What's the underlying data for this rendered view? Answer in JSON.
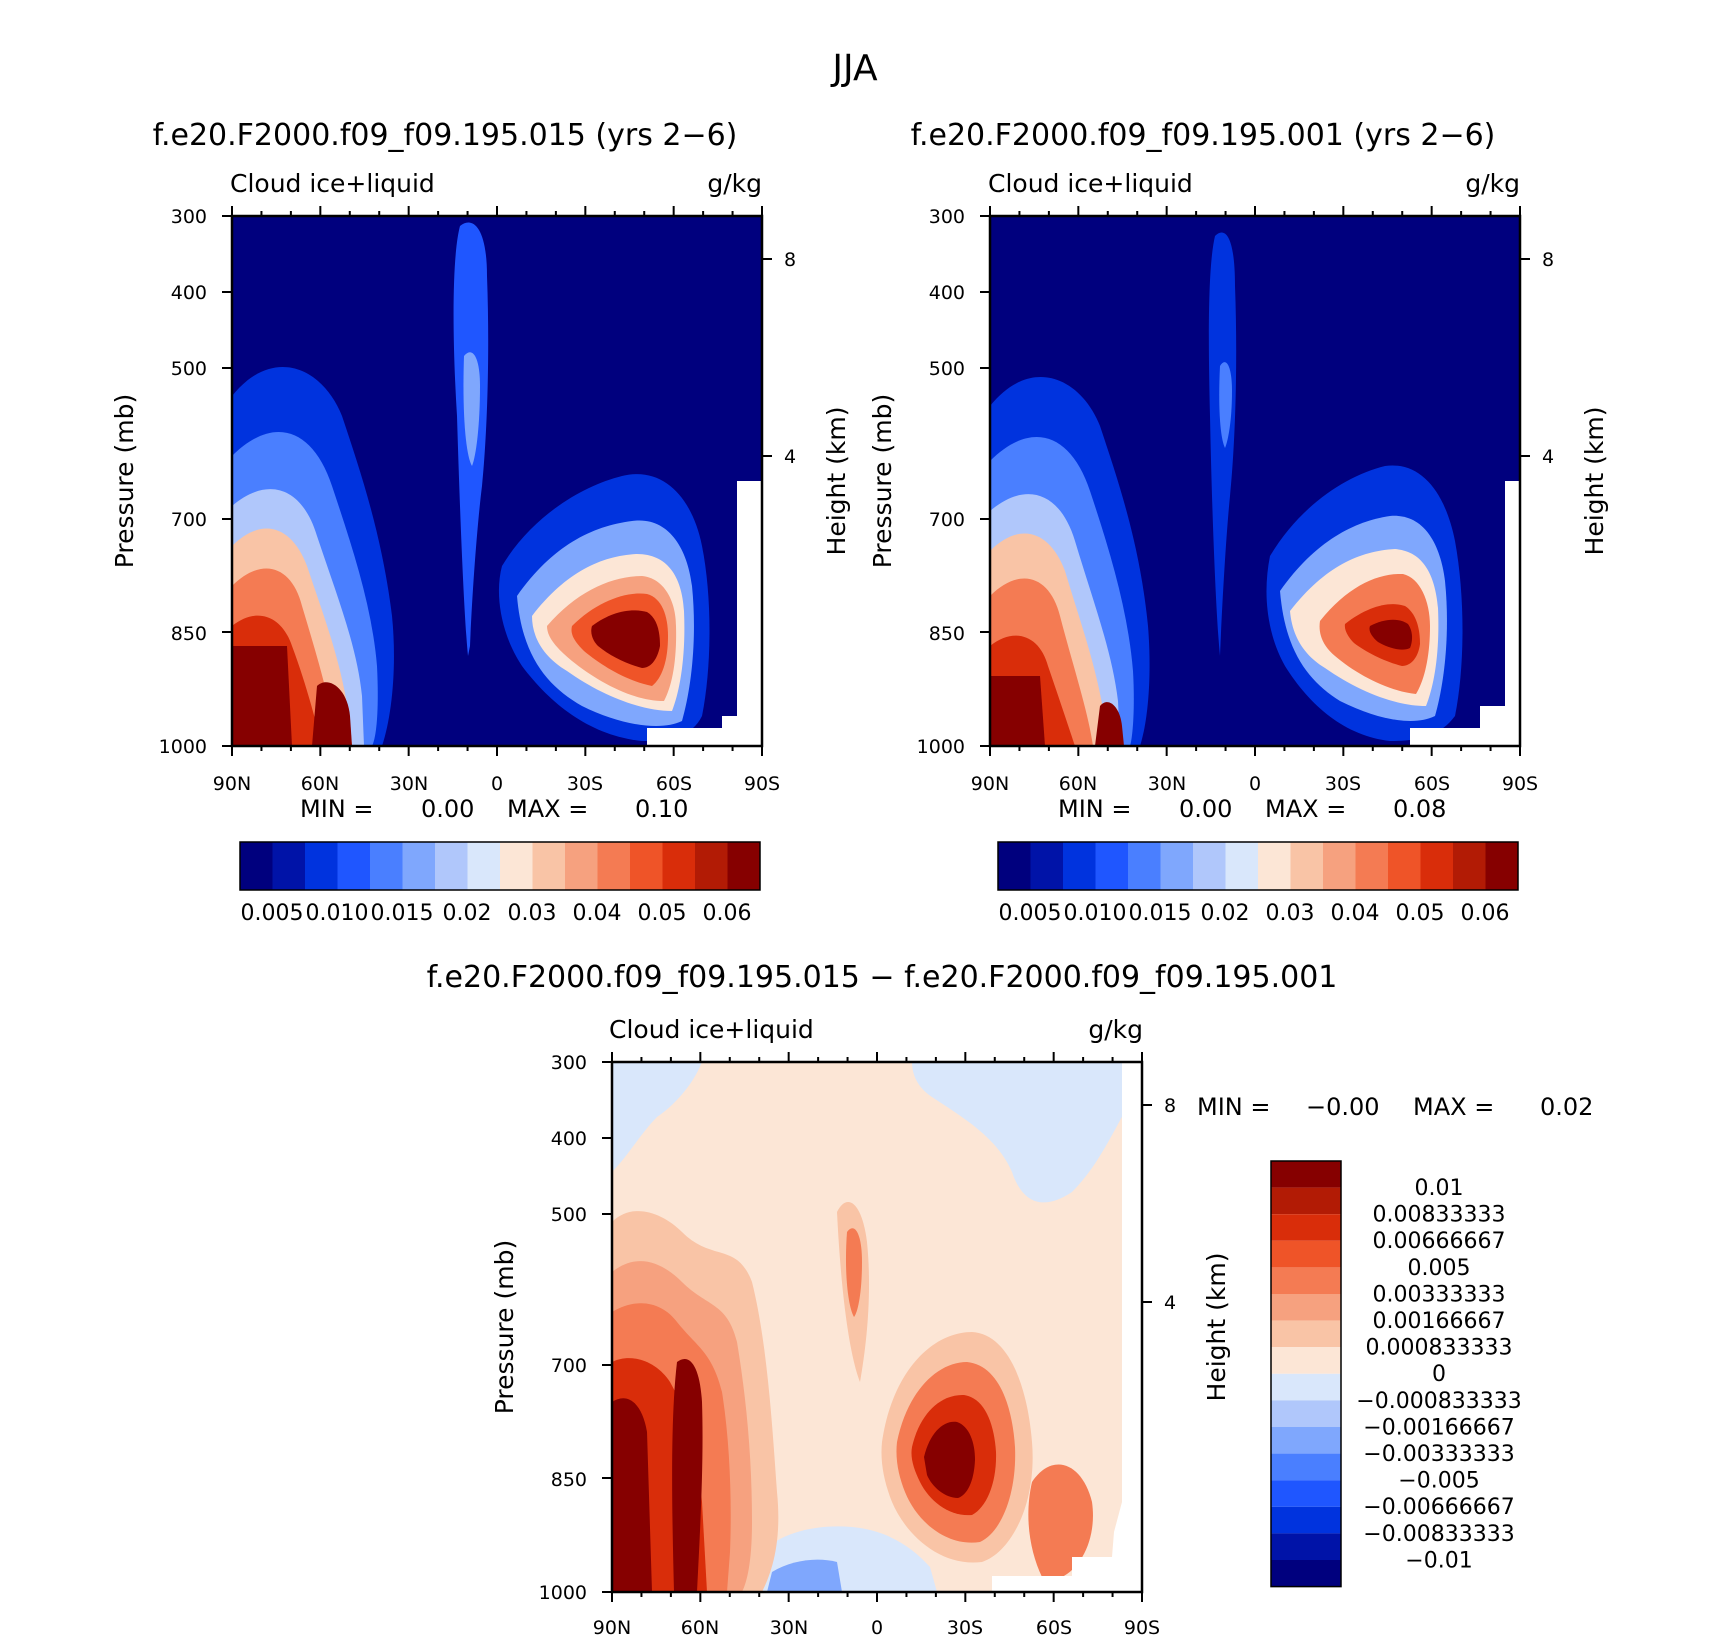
{
  "chart_data": {
    "title": "JJA",
    "palette": {
      "blues": [
        "#00007e",
        "#0013a8",
        "#0033de",
        "#1f56ff",
        "#4a7fff",
        "#7fa7fd",
        "#b0c7fb",
        "#d9e7fb"
      ],
      "reds": [
        "#fce6d6",
        "#f9c4a6",
        "#f6a17f",
        "#f47b53",
        "#ef5428",
        "#d92d0a",
        "#b21b05",
        "#860000"
      ]
    },
    "panels": [
      {
        "type": "contour",
        "title": "f.e20.F2000.f09_f09.195.015 (yrs 2−6)",
        "field_label": "Cloud ice+liquid",
        "units": "g/kg",
        "ylabel_left": "Pressure (mb)",
        "ylabel_right": "Height (km)",
        "x_ticks": [
          "90N",
          "60N",
          "30N",
          "0",
          "30S",
          "60S",
          "90S"
        ],
        "y_ticks": [
          "300",
          "400",
          "500",
          "700",
          "850",
          "1000"
        ],
        "height_ticks": [
          "8",
          "4"
        ],
        "min_label": "MIN =",
        "min_value": "0.00",
        "max_label": "MAX =",
        "max_value": "0.10",
        "colorbar_labels": [
          "0.005",
          "0.010",
          "0.015",
          "0.02",
          "0.03",
          "0.04",
          "0.05",
          "0.06"
        ]
      },
      {
        "type": "contour",
        "title": "f.e20.F2000.f09_f09.195.001 (yrs 2−6)",
        "field_label": "Cloud ice+liquid",
        "units": "g/kg",
        "ylabel_left": "Pressure (mb)",
        "ylabel_right": "Height (km)",
        "x_ticks": [
          "90N",
          "60N",
          "30N",
          "0",
          "30S",
          "60S",
          "90S"
        ],
        "y_ticks": [
          "300",
          "400",
          "500",
          "700",
          "850",
          "1000"
        ],
        "height_ticks": [
          "8",
          "4"
        ],
        "min_label": "MIN =",
        "min_value": "0.00",
        "max_label": "MAX =",
        "max_value": "0.08",
        "colorbar_labels": [
          "0.005",
          "0.010",
          "0.015",
          "0.02",
          "0.03",
          "0.04",
          "0.05",
          "0.06"
        ]
      },
      {
        "type": "contour",
        "title": "f.e20.F2000.f09_f09.195.015 − f.e20.F2000.f09_f09.195.001",
        "field_label": "Cloud ice+liquid",
        "units": "g/kg",
        "ylabel_left": "Pressure (mb)",
        "ylabel_right": "Height (km)",
        "x_ticks": [
          "90N",
          "60N",
          "30N",
          "0",
          "30S",
          "60S",
          "90S"
        ],
        "y_ticks": [
          "300",
          "400",
          "500",
          "700",
          "850",
          "1000"
        ],
        "height_ticks": [
          "8",
          "4"
        ],
        "min_label": "MIN =",
        "min_value": "−0.00",
        "max_label": "MAX =",
        "max_value": "0.02",
        "colorbar_labels": [
          "0.01",
          "0.00833333",
          "0.00666667",
          "0.005",
          "0.00333333",
          "0.00166667",
          "0.000833333",
          "0",
          "−0.000833333",
          "−0.00166667",
          "−0.00333333",
          "−0.005",
          "−0.00666667",
          "−0.00833333",
          "−0.01"
        ]
      }
    ]
  }
}
